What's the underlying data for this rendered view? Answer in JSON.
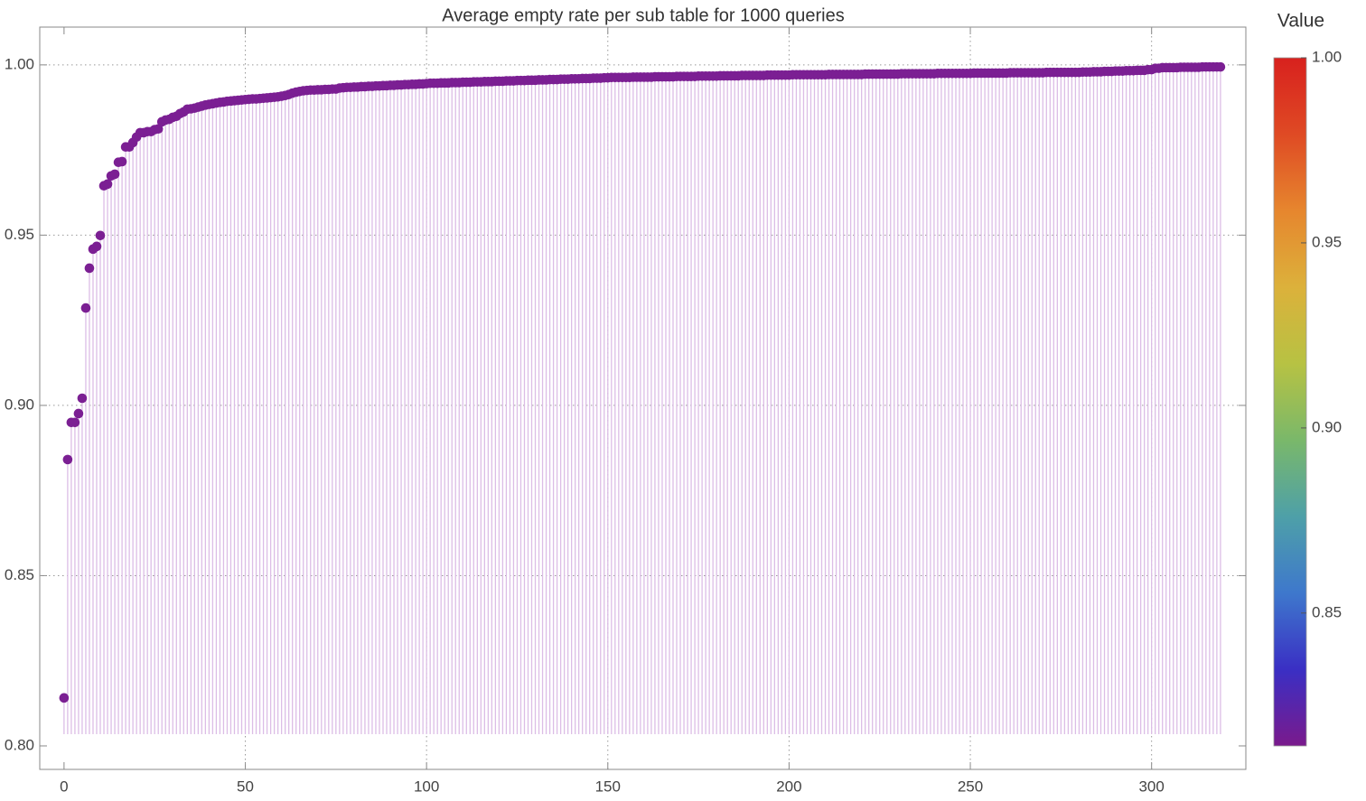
{
  "chart_data": {
    "type": "stem",
    "title": "Average empty rate per sub table for 1000 queries",
    "x": [
      0,
      1,
      2,
      3,
      4,
      5,
      6,
      7,
      8,
      9,
      10,
      11,
      12,
      13,
      14,
      15,
      16,
      17,
      18,
      19,
      20,
      21,
      22,
      23,
      24,
      25,
      26,
      27,
      28,
      29,
      30,
      31,
      32,
      33,
      34,
      35,
      36,
      37,
      38,
      39,
      40,
      41,
      42,
      43,
      44,
      45,
      46,
      47,
      48,
      49,
      50,
      51,
      52,
      53,
      54,
      55,
      56,
      57,
      58,
      59,
      60,
      61,
      62,
      63,
      64,
      65,
      66,
      67,
      68,
      69,
      70,
      71,
      72,
      73,
      74,
      75,
      76,
      77,
      78,
      79,
      80,
      81,
      82,
      83,
      84,
      85,
      86,
      87,
      88,
      89,
      90,
      91,
      92,
      93,
      94,
      95,
      96,
      97,
      98,
      99,
      100,
      101,
      102,
      103,
      104,
      105,
      106,
      107,
      108,
      109,
      110,
      111,
      112,
      113,
      114,
      115,
      116,
      117,
      118,
      119,
      120,
      121,
      122,
      123,
      124,
      125,
      126,
      127,
      128,
      129,
      130,
      131,
      132,
      133,
      134,
      135,
      136,
      137,
      138,
      139,
      140,
      141,
      142,
      143,
      144,
      145,
      146,
      147,
      148,
      149,
      150,
      151,
      152,
      153,
      154,
      155,
      156,
      157,
      158,
      159,
      160,
      161,
      162,
      163,
      164,
      165,
      166,
      167,
      168,
      169,
      170,
      171,
      172,
      173,
      174,
      175,
      176,
      177,
      178,
      179,
      180,
      181,
      182,
      183,
      184,
      185,
      186,
      187,
      188,
      189,
      190,
      191,
      192,
      193,
      194,
      195,
      196,
      197,
      198,
      199,
      200,
      201,
      202,
      203,
      204,
      205,
      206,
      207,
      208,
      209,
      210,
      211,
      212,
      213,
      214,
      215,
      216,
      217,
      218,
      219,
      220,
      221,
      222,
      223,
      224,
      225,
      226,
      227,
      228,
      229,
      230,
      231,
      232,
      233,
      234,
      235,
      236,
      237,
      238,
      239,
      240,
      241,
      242,
      243,
      244,
      245,
      246,
      247,
      248,
      249,
      250,
      251,
      252,
      253,
      254,
      255,
      256,
      257,
      258,
      259,
      260,
      261,
      262,
      263,
      264,
      265,
      266,
      267,
      268,
      269,
      270,
      271,
      272,
      273,
      274,
      275,
      276,
      277,
      278,
      279,
      280,
      281,
      282,
      283,
      284,
      285,
      286,
      287,
      288,
      289,
      290,
      291,
      292,
      293,
      294,
      295,
      296,
      297,
      298,
      299,
      300,
      301,
      302,
      303,
      304,
      305,
      306,
      307,
      308,
      309,
      310,
      311,
      312,
      313,
      314,
      315,
      316,
      317,
      318,
      319
    ],
    "values": [
      0.8141,
      0.8841,
      0.895,
      0.895,
      0.8976,
      0.9021,
      0.9286,
      0.9403,
      0.9459,
      0.9467,
      0.9499,
      0.9645,
      0.965,
      0.9674,
      0.9679,
      0.9714,
      0.9716,
      0.9759,
      0.9759,
      0.9772,
      0.9788,
      0.9801,
      0.9801,
      0.9804,
      0.9804,
      0.981,
      0.9812,
      0.9833,
      0.9838,
      0.984,
      0.9846,
      0.9849,
      0.9857,
      0.9862,
      0.987,
      0.9871,
      0.9873,
      0.9876,
      0.9879,
      0.9882,
      0.9884,
      0.9886,
      0.9888,
      0.989,
      0.9891,
      0.9893,
      0.9894,
      0.9895,
      0.9896,
      0.9897,
      0.9898,
      0.9899,
      0.99,
      0.99,
      0.9901,
      0.9902,
      0.9903,
      0.9904,
      0.9905,
      0.9906,
      0.9908,
      0.991,
      0.9913,
      0.9917,
      0.992,
      0.9922,
      0.9924,
      0.9925,
      0.9926,
      0.9926,
      0.9927,
      0.9927,
      0.9928,
      0.9928,
      0.9929,
      0.9929,
      0.9932,
      0.9933,
      0.9934,
      0.9934,
      0.9935,
      0.9935,
      0.9936,
      0.9936,
      0.9937,
      0.9937,
      0.9938,
      0.9938,
      0.9939,
      0.9939,
      0.994,
      0.994,
      0.9941,
      0.9941,
      0.9942,
      0.9942,
      0.9943,
      0.9943,
      0.9944,
      0.9944,
      0.9945,
      0.9946,
      0.9946,
      0.9946,
      0.9947,
      0.9947,
      0.9947,
      0.9948,
      0.9948,
      0.9948,
      0.9949,
      0.9949,
      0.9949,
      0.995,
      0.995,
      0.995,
      0.9951,
      0.9951,
      0.9951,
      0.9952,
      0.9952,
      0.9952,
      0.9953,
      0.9953,
      0.9953,
      0.9954,
      0.9954,
      0.9954,
      0.9955,
      0.9955,
      0.9955,
      0.9956,
      0.9956,
      0.9956,
      0.9957,
      0.9957,
      0.9957,
      0.9958,
      0.9958,
      0.9958,
      0.9959,
      0.9959,
      0.9959,
      0.996,
      0.996,
      0.996,
      0.9961,
      0.9961,
      0.9961,
      0.9962,
      0.9962,
      0.9963,
      0.9963,
      0.9963,
      0.9963,
      0.9963,
      0.9963,
      0.9964,
      0.9964,
      0.9964,
      0.9964,
      0.9964,
      0.9964,
      0.9965,
      0.9965,
      0.9965,
      0.9965,
      0.9965,
      0.9965,
      0.9966,
      0.9966,
      0.9966,
      0.9966,
      0.9966,
      0.9966,
      0.9967,
      0.9967,
      0.9967,
      0.9967,
      0.9967,
      0.9967,
      0.9968,
      0.9968,
      0.9968,
      0.9968,
      0.9968,
      0.9968,
      0.9969,
      0.9969,
      0.9969,
      0.9969,
      0.9969,
      0.9969,
      0.9969,
      0.997,
      0.997,
      0.997,
      0.997,
      0.997,
      0.997,
      0.997,
      0.9971,
      0.9971,
      0.9971,
      0.9971,
      0.9971,
      0.9971,
      0.9971,
      0.9971,
      0.9971,
      0.9971,
      0.9972,
      0.9972,
      0.9972,
      0.9972,
      0.9972,
      0.9972,
      0.9972,
      0.9972,
      0.9972,
      0.9972,
      0.9973,
      0.9973,
      0.9973,
      0.9973,
      0.9973,
      0.9973,
      0.9973,
      0.9973,
      0.9973,
      0.9973,
      0.9974,
      0.9974,
      0.9974,
      0.9974,
      0.9974,
      0.9974,
      0.9974,
      0.9974,
      0.9974,
      0.9974,
      0.9975,
      0.9975,
      0.9975,
      0.9975,
      0.9975,
      0.9975,
      0.9975,
      0.9975,
      0.9975,
      0.9975,
      0.9976,
      0.9976,
      0.9976,
      0.9976,
      0.9976,
      0.9976,
      0.9976,
      0.9976,
      0.9976,
      0.9976,
      0.9977,
      0.9977,
      0.9977,
      0.9977,
      0.9977,
      0.9977,
      0.9977,
      0.9977,
      0.9977,
      0.9977,
      0.9978,
      0.9978,
      0.9978,
      0.9978,
      0.9978,
      0.9978,
      0.9978,
      0.9978,
      0.9978,
      0.9978,
      0.9979,
      0.9979,
      0.9979,
      0.998,
      0.998,
      0.998,
      0.9981,
      0.9981,
      0.9981,
      0.9982,
      0.9982,
      0.9982,
      0.9983,
      0.9983,
      0.9983,
      0.9984,
      0.9984,
      0.9984,
      0.9986,
      0.9986,
      0.999,
      0.999,
      0.9992,
      0.9992,
      0.9992,
      0.9992,
      0.9992,
      0.9993,
      0.9993,
      0.9993,
      0.9993,
      0.9993,
      0.9993,
      0.9994,
      0.9994,
      0.9994,
      0.9994,
      0.9994,
      0.9994
    ],
    "color": "#7b1f93",
    "stem_color": "#dcbde6",
    "xlim": [
      -6.7,
      326
    ],
    "ylim": [
      0.7931,
      1.0111
    ],
    "xticks": [
      0,
      50,
      100,
      150,
      200,
      250,
      300
    ],
    "yticks": [
      {
        "value": 0.8,
        "label": "0.80"
      },
      0.85,
      {
        "value": 0.9,
        "label": "0.90"
      },
      0.95,
      {
        "value": 1.0,
        "label": "1.00"
      }
    ],
    "grid": true,
    "colorbar": {
      "title": "Value",
      "lim": [
        0.8141,
        1.0
      ],
      "ticks": [
        0.85,
        {
          "value": 0.9,
          "label": "0.90"
        },
        0.95,
        {
          "value": 1.0,
          "label": "1.00"
        }
      ],
      "colors": [
        "#7a1a8c",
        "#3a2fc4",
        "#3e78cc",
        "#4ea0a8",
        "#7ab86a",
        "#b7c243",
        "#dcb13b",
        "#e6862e",
        "#df4a24",
        "#d8211e"
      ]
    }
  }
}
